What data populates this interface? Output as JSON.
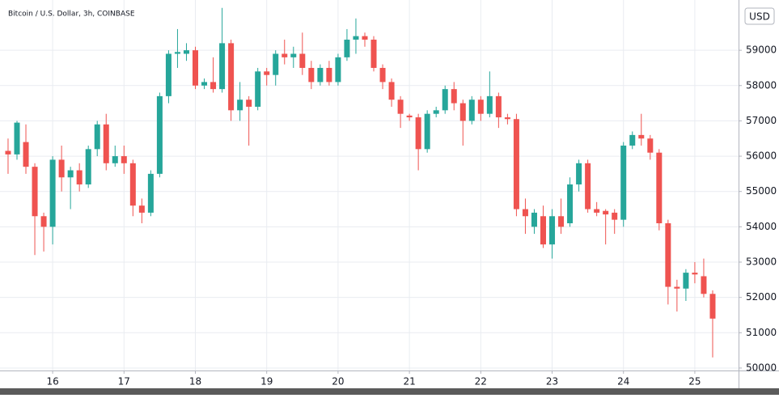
{
  "chart_data": {
    "type": "candlestick",
    "title": "Bitcoin / U.S. Dollar, 3h, COINBASE",
    "currency": "USD",
    "up_color": "#26a69a",
    "down_color": "#ef5350",
    "grid": true,
    "x": [
      15.375,
      15.5,
      15.625,
      15.75,
      15.875,
      16,
      16.125,
      16.25,
      16.375,
      16.5,
      16.625,
      16.75,
      16.875,
      17,
      17.125,
      17.25,
      17.375,
      17.5,
      17.625,
      17.75,
      17.875,
      18,
      18.125,
      18.25,
      18.375,
      18.5,
      18.625,
      18.75,
      18.875,
      19,
      19.125,
      19.25,
      19.375,
      19.5,
      19.625,
      19.75,
      19.875,
      20,
      20.125,
      20.25,
      20.375,
      20.5,
      20.625,
      20.75,
      20.875,
      21,
      21.125,
      21.25,
      21.375,
      21.5,
      21.625,
      21.75,
      21.875,
      22,
      22.125,
      22.25,
      22.375,
      22.5,
      22.625,
      22.75,
      22.875,
      23,
      23.125,
      23.25,
      23.375,
      23.5,
      23.625,
      23.75,
      23.875,
      24,
      24.125,
      24.25,
      24.375,
      24.5,
      24.625,
      24.75,
      24.875,
      25,
      25.125,
      25.25
    ],
    "open": [
      56150,
      56050,
      56400,
      55700,
      54300,
      54000,
      55900,
      55400,
      55600,
      55200,
      56200,
      56900,
      55800,
      56000,
      55800,
      54600,
      54400,
      55500,
      57700,
      58900,
      58900,
      59000,
      58000,
      58100,
      57900,
      59200,
      57300,
      57600,
      57400,
      58400,
      58300,
      58900,
      58800,
      58900,
      58500,
      58100,
      58500,
      58100,
      58800,
      59300,
      59400,
      59300,
      58500,
      58100,
      57600,
      57150,
      57100,
      56200,
      57200,
      57300,
      57900,
      57500,
      57000,
      57600,
      57200,
      57700,
      57100,
      57050,
      54500,
      54000,
      54300,
      53500,
      54300,
      54100,
      55200,
      55800,
      54500,
      54450,
      54400,
      54200,
      56300,
      56600,
      56500,
      56100,
      54100,
      52300,
      52250,
      52700,
      52600,
      52100
    ],
    "high": [
      56500,
      57000,
      56900,
      55800,
      54400,
      56000,
      56300,
      55700,
      55800,
      56300,
      57000,
      57200,
      56300,
      56300,
      55900,
      54800,
      55600,
      57800,
      59000,
      59600,
      59200,
      59100,
      58200,
      58800,
      60200,
      59300,
      58100,
      57700,
      58500,
      58500,
      59000,
      59300,
      59100,
      59500,
      58700,
      58600,
      58700,
      58900,
      59600,
      59900,
      59500,
      59400,
      58600,
      58200,
      57700,
      57200,
      57200,
      57300,
      57400,
      58000,
      58100,
      57600,
      57700,
      57700,
      58400,
      57800,
      57200,
      57200,
      54800,
      54500,
      54600,
      54500,
      54800,
      55400,
      55900,
      55900,
      54700,
      54500,
      54500,
      56400,
      56700,
      57200,
      56600,
      56200,
      54200,
      52500,
      52800,
      53000,
      53100,
      52200
    ],
    "low": [
      55500,
      55900,
      55500,
      53200,
      53300,
      53500,
      55000,
      54500,
      55000,
      55100,
      56000,
      55600,
      55700,
      55500,
      54300,
      54100,
      54300,
      55400,
      57500,
      58500,
      58700,
      57900,
      57900,
      57800,
      57800,
      57000,
      57000,
      56300,
      57300,
      58000,
      58000,
      58600,
      58500,
      58300,
      57900,
      58000,
      58000,
      58000,
      58700,
      58900,
      59100,
      58400,
      57900,
      57400,
      56800,
      57000,
      55600,
      56100,
      57100,
      57200,
      57300,
      56300,
      56900,
      57000,
      57100,
      56800,
      56900,
      54300,
      53800,
      53800,
      53400,
      53100,
      53800,
      54000,
      55000,
      54400,
      54300,
      53500,
      53800,
      54000,
      56200,
      56300,
      55900,
      53900,
      51800,
      51600,
      51900,
      52400,
      52000,
      50300
    ],
    "close": [
      56050,
      56950,
      55700,
      54300,
      54000,
      55900,
      55400,
      55600,
      55200,
      56200,
      56900,
      55800,
      56000,
      55800,
      54600,
      54400,
      55500,
      57700,
      58900,
      58950,
      59000,
      58000,
      58100,
      57900,
      59200,
      57300,
      57600,
      57400,
      58400,
      58300,
      58900,
      58800,
      58900,
      58500,
      58100,
      58500,
      58100,
      58800,
      59300,
      59400,
      59300,
      58500,
      58100,
      57600,
      57200,
      57100,
      56200,
      57200,
      57300,
      57900,
      57500,
      57000,
      57600,
      57200,
      57700,
      57100,
      57050,
      54500,
      54300,
      54400,
      53500,
      54300,
      54000,
      55200,
      55800,
      54500,
      54400,
      54350,
      54200,
      56300,
      56600,
      56500,
      56100,
      54100,
      52300,
      52250,
      52700,
      52650,
      52100,
      51400
    ],
    "xlim": [
      15.262,
      25.613
    ],
    "xticks": [
      16,
      17,
      18,
      19,
      20,
      21,
      22,
      23,
      24,
      25
    ],
    "ylim": [
      49930,
      60240
    ],
    "yticks": [
      50000,
      51000,
      52000,
      53000,
      54000,
      55000,
      56000,
      57000,
      58000,
      59000
    ]
  }
}
